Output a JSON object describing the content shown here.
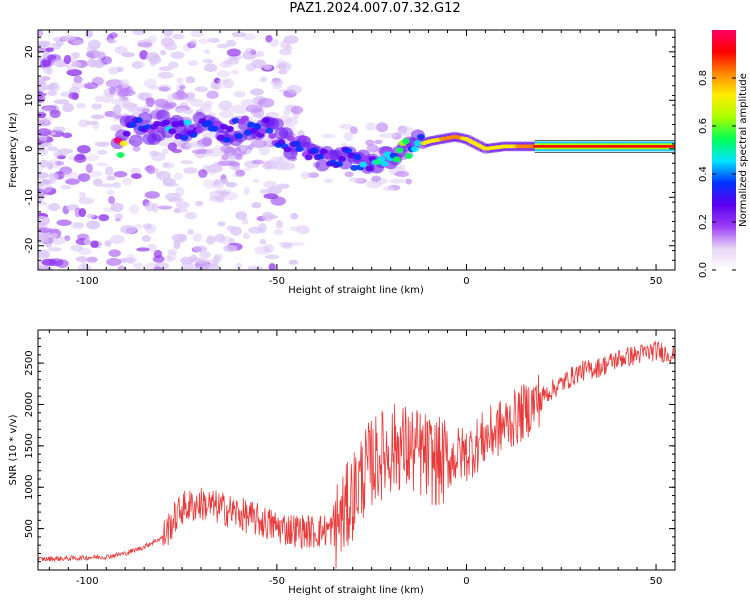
{
  "title": "PAZ1.2024.007.07.32.G12",
  "colors": {
    "snr_line": "#e83a3a",
    "spectrogram_scale": [
      "#ffffff",
      "#e6d4f5",
      "#9b3df5",
      "#5b00f0",
      "#0033ff",
      "#00e5ff",
      "#00ff55",
      "#aaff00",
      "#ffee00",
      "#ff8800",
      "#ff0000",
      "#ff0066"
    ]
  },
  "chart_data": [
    {
      "type": "heatmap",
      "name": "spectrogram",
      "xlabel": "Height of straight line (km)",
      "ylabel": "Frequency (Hz)",
      "xlim": [
        -113,
        55
      ],
      "ylim": [
        -25,
        24.5
      ],
      "xticks": [
        -100,
        -50,
        0,
        50
      ],
      "xtick_labels": [
        "-100",
        "-50",
        "0",
        "50"
      ],
      "yticks": [
        -20,
        -10,
        0,
        10,
        20
      ],
      "ytick_labels": [
        "-20",
        "-10",
        "0",
        "10",
        "20"
      ],
      "colorbar": {
        "label": "Normalized spectral amplitude",
        "range": [
          0,
          1
        ],
        "ticks": [
          0.0,
          0.2,
          0.4,
          0.6,
          0.8
        ],
        "tick_labels": [
          "0.0",
          "0.2",
          "0.4",
          "0.6",
          "0.8"
        ]
      },
      "ridge": [
        {
          "x": -90,
          "y": 4,
          "amp": 0.28
        },
        {
          "x": -80,
          "y": 4.5,
          "amp": 0.35
        },
        {
          "x": -72,
          "y": 4,
          "amp": 0.35
        },
        {
          "x": -65,
          "y": 3.5,
          "amp": 0.3
        },
        {
          "x": -55,
          "y": 5,
          "amp": 0.3
        },
        {
          "x": -48,
          "y": 2,
          "amp": 0.28
        },
        {
          "x": -40,
          "y": -1,
          "amp": 0.3
        },
        {
          "x": -33,
          "y": -2,
          "amp": 0.32
        },
        {
          "x": -25,
          "y": -3,
          "amp": 0.38
        },
        {
          "x": -20,
          "y": -1,
          "amp": 0.45
        },
        {
          "x": -15,
          "y": 0,
          "amp": 0.5
        },
        {
          "x": -10,
          "y": 1.5,
          "amp": 0.75
        },
        {
          "x": -3,
          "y": 2.5,
          "amp": 0.8
        },
        {
          "x": 0,
          "y": 2,
          "amp": 0.75
        },
        {
          "x": 5,
          "y": 0,
          "amp": 0.7
        },
        {
          "x": 10,
          "y": 0.5,
          "amp": 0.72
        },
        {
          "x": 20,
          "y": 0.5,
          "amp": 0.9
        },
        {
          "x": 30,
          "y": 0.5,
          "amp": 0.95
        },
        {
          "x": 40,
          "y": 0.5,
          "amp": 0.95
        },
        {
          "x": 55,
          "y": 0.5,
          "amp": 0.95
        }
      ]
    },
    {
      "type": "line",
      "name": "snr",
      "xlabel": "Height of straight line (km)",
      "ylabel": "SNR (10 * v/v)",
      "xlim": [
        -113,
        55
      ],
      "ylim": [
        0,
        2900
      ],
      "xticks": [
        -100,
        -50,
        0,
        50
      ],
      "xtick_labels": [
        "-100",
        "-50",
        "0",
        "50"
      ],
      "yticks": [
        500,
        1000,
        1500,
        2000,
        2500
      ],
      "ytick_labels": [
        "500",
        "1000",
        "1500",
        "2000",
        "2500"
      ],
      "x": [
        -113,
        -105,
        -95,
        -90,
        -85,
        -80,
        -77,
        -75,
        -70,
        -65,
        -60,
        -55,
        -50,
        -45,
        -40,
        -35,
        -32,
        -30,
        -28,
        -25,
        -22,
        -20,
        -18,
        -15,
        -12,
        -10,
        -8,
        -5,
        -2,
        0,
        5,
        10,
        15,
        20,
        25,
        30,
        35,
        40,
        45,
        50,
        55
      ],
      "y": [
        130,
        140,
        160,
        200,
        280,
        400,
        620,
        750,
        800,
        750,
        680,
        600,
        520,
        480,
        460,
        500,
        700,
        900,
        1100,
        1300,
        1400,
        1450,
        1500,
        1450,
        1400,
        1350,
        1300,
        1300,
        1400,
        1400,
        1600,
        1750,
        1900,
        2100,
        2250,
        2400,
        2450,
        2550,
        2600,
        2650,
        2600
      ]
    }
  ]
}
